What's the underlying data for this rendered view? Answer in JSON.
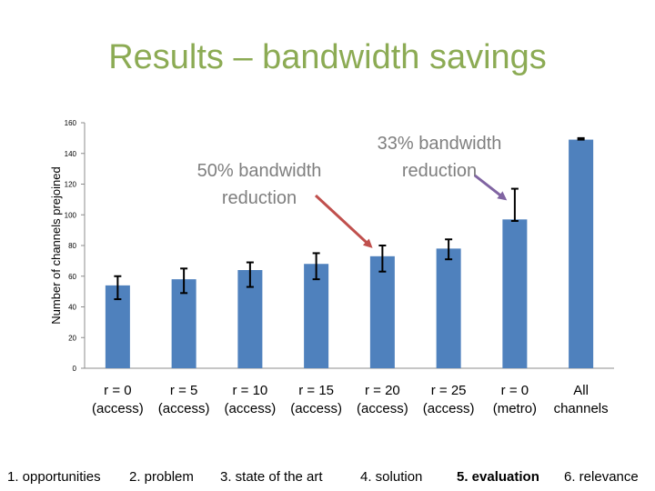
{
  "slide": {
    "title": "Results – bandwidth savings"
  },
  "colors": {
    "title": "#8cab54",
    "bar": "#4f81bd",
    "arrow_red": "#c0504d",
    "arrow_purple": "#8064a2",
    "annotation_text": "#7f7f7f"
  },
  "chart_data": {
    "type": "bar",
    "title": "",
    "xlabel": "",
    "ylabel": "Number of channels prejoined",
    "ylim": [
      0,
      160
    ],
    "yticks": [
      0,
      20,
      40,
      60,
      80,
      100,
      120,
      140,
      160
    ],
    "grid": false,
    "categories": [
      [
        "r = 0",
        "(access)"
      ],
      [
        "r = 5",
        "(access)"
      ],
      [
        "r = 10",
        "(access)"
      ],
      [
        "r = 15",
        "(access)"
      ],
      [
        "r = 20",
        "(access)"
      ],
      [
        "r = 25",
        "(access)"
      ],
      [
        "r = 0",
        "(metro)"
      ],
      [
        "All",
        "channels"
      ]
    ],
    "values": [
      54,
      58,
      64,
      68,
      73,
      78,
      97,
      149
    ],
    "error_low": [
      45,
      49,
      53,
      58,
      63,
      71,
      96,
      149
    ],
    "error_high": [
      60,
      65,
      69,
      75,
      80,
      84,
      117,
      150
    ],
    "annotations": [
      {
        "text": [
          "50% bandwidth",
          "reduction"
        ],
        "target_category": 4
      },
      {
        "text": [
          "33% bandwidth",
          "reduction"
        ],
        "target_category": 6
      }
    ]
  },
  "footer": {
    "items": [
      {
        "label": "1. opportunities",
        "active": false
      },
      {
        "label": "2. problem",
        "active": false
      },
      {
        "label": "3. state of the art",
        "active": false
      },
      {
        "label": "4. solution",
        "active": false
      },
      {
        "label": "5. evaluation",
        "active": true
      },
      {
        "label": "6. relevance",
        "active": false
      }
    ]
  }
}
